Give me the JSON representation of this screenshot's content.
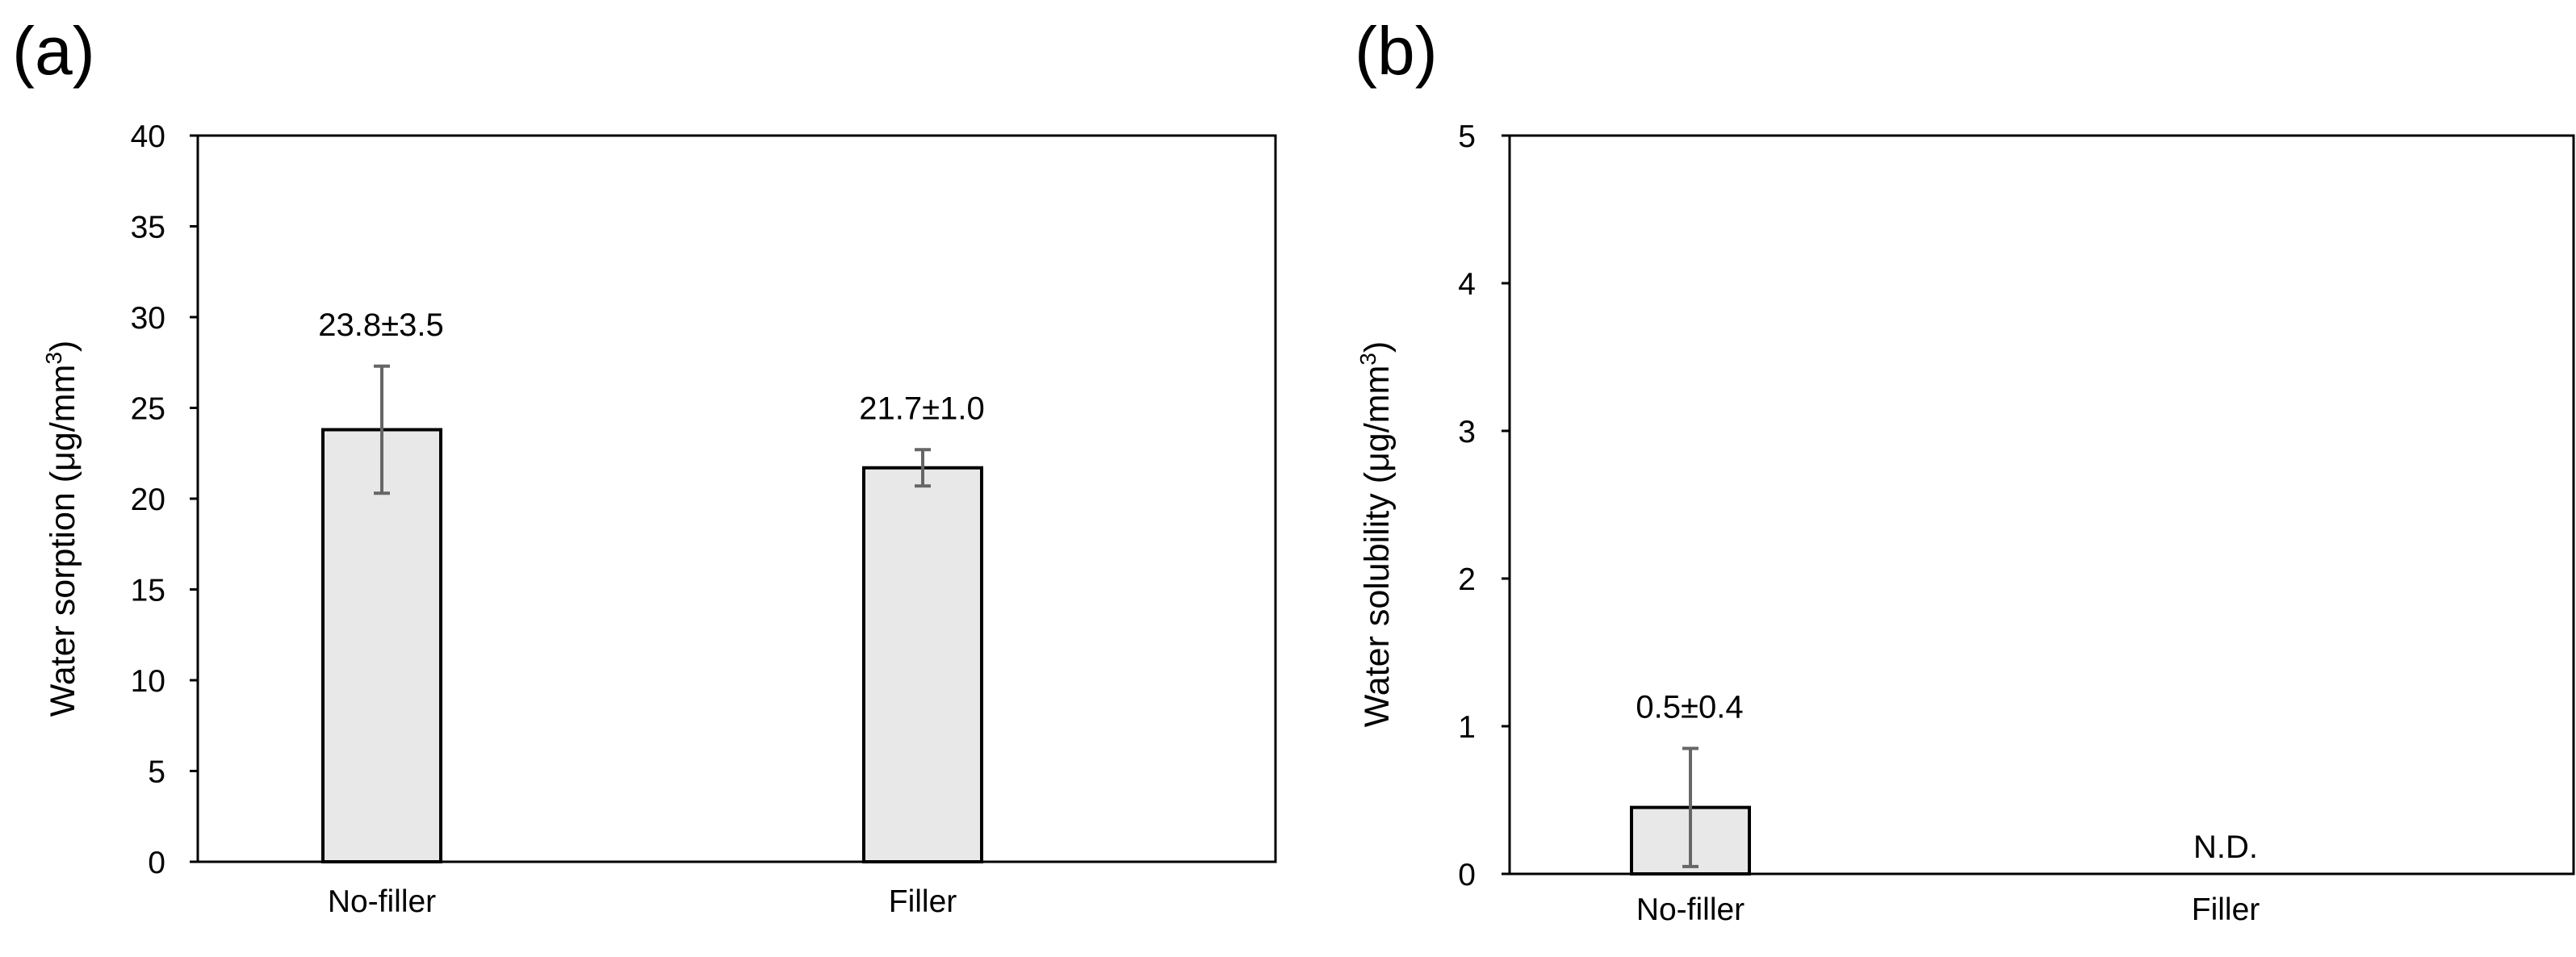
{
  "colors": {
    "bar_fill": "#e8e8e8",
    "bar_stroke": "#000000",
    "errorbar": "#666666",
    "frame": "#000000"
  },
  "chart_data": [
    {
      "panel_label": "(a)",
      "type": "bar",
      "categories": [
        "No-filler",
        "Filler"
      ],
      "values": [
        23.8,
        21.7
      ],
      "errors": [
        3.5,
        1.0
      ],
      "data_labels": [
        "23.8±3.5",
        "21.7±1.0"
      ],
      "ylabel_main": "Water sorption (μg/mm",
      "ylabel_sup": "3",
      "ylabel_close": ")",
      "ylim": [
        0,
        40
      ],
      "yticks": [
        "0",
        "5",
        "10",
        "15",
        "20",
        "25",
        "30",
        "35",
        "40"
      ],
      "grid": false
    },
    {
      "panel_label": "(b)",
      "type": "bar",
      "categories": [
        "No-filler",
        "Filler"
      ],
      "values": [
        0.45,
        null
      ],
      "errors": [
        0.4,
        null
      ],
      "data_labels": [
        "0.5±0.4",
        "N.D."
      ],
      "ylabel_main": "Water solubility (μg/mm",
      "ylabel_sup": "3",
      "ylabel_close": ")",
      "ylim": [
        0,
        5
      ],
      "yticks": [
        "0",
        "1",
        "2",
        "3",
        "4",
        "5"
      ],
      "grid": false
    }
  ]
}
